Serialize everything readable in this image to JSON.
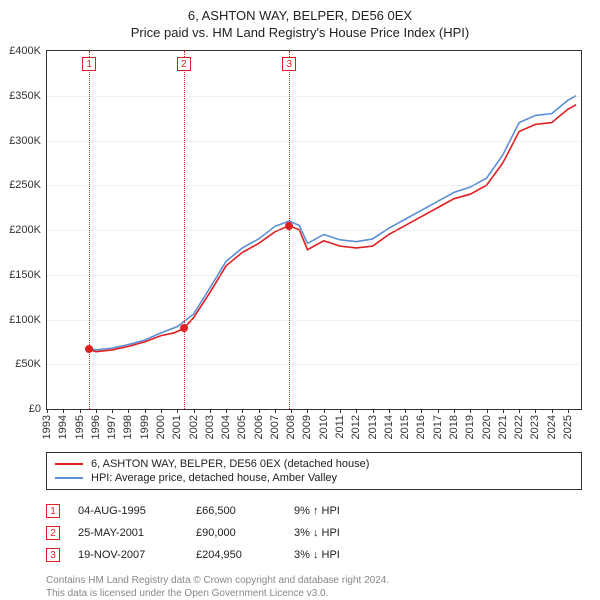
{
  "title_line1": "6, ASHTON WAY, BELPER, DE56 0EX",
  "title_line2": "Price paid vs. HM Land Registry's House Price Index (HPI)",
  "chart": {
    "type": "line",
    "background_color": "#ffffff",
    "grid_color": "#cccccc",
    "axis_color": "#333333",
    "label_fontsize": 11,
    "x_years": [
      1993,
      1994,
      1995,
      1996,
      1997,
      1998,
      1999,
      2000,
      2001,
      2002,
      2003,
      2004,
      2005,
      2006,
      2007,
      2008,
      2009,
      2010,
      2011,
      2012,
      2013,
      2014,
      2015,
      2016,
      2017,
      2018,
      2019,
      2020,
      2021,
      2022,
      2023,
      2024,
      2025
    ],
    "y_ticks": [
      0,
      50000,
      100000,
      150000,
      200000,
      250000,
      300000,
      350000,
      400000
    ],
    "y_tick_labels": [
      "£0",
      "£50K",
      "£100K",
      "£150K",
      "£200K",
      "£250K",
      "£300K",
      "£350K",
      "£400K"
    ],
    "ylim": [
      0,
      400000
    ],
    "xlim": [
      1993,
      2025.8
    ],
    "series": [
      {
        "name": "6, ASHTON WAY, BELPER, DE56 0EX (detached house)",
        "color": "#e02020",
        "line_width": 1.6,
        "data": [
          [
            1995.6,
            66500
          ],
          [
            1996,
            64000
          ],
          [
            1997,
            66000
          ],
          [
            1998,
            70000
          ],
          [
            1999,
            75000
          ],
          [
            2000,
            82000
          ],
          [
            2000.8,
            85000
          ],
          [
            2001.4,
            90000
          ],
          [
            2002,
            102000
          ],
          [
            2003,
            130000
          ],
          [
            2004,
            160000
          ],
          [
            2005,
            175000
          ],
          [
            2006,
            185000
          ],
          [
            2007,
            198000
          ],
          [
            2007.88,
            204950
          ],
          [
            2008.5,
            200000
          ],
          [
            2009,
            178000
          ],
          [
            2010,
            188000
          ],
          [
            2011,
            182000
          ],
          [
            2012,
            180000
          ],
          [
            2013,
            182000
          ],
          [
            2014,
            195000
          ],
          [
            2015,
            205000
          ],
          [
            2016,
            215000
          ],
          [
            2017,
            225000
          ],
          [
            2018,
            235000
          ],
          [
            2019,
            240000
          ],
          [
            2020,
            250000
          ],
          [
            2021,
            275000
          ],
          [
            2022,
            310000
          ],
          [
            2023,
            318000
          ],
          [
            2024,
            320000
          ],
          [
            2025,
            335000
          ],
          [
            2025.5,
            340000
          ]
        ]
      },
      {
        "name": "HPI: Average price, detached house, Amber Valley",
        "color": "#5b8fd6",
        "line_width": 1.6,
        "data": [
          [
            1995.6,
            68000
          ],
          [
            1996,
            66000
          ],
          [
            1997,
            68000
          ],
          [
            1998,
            72000
          ],
          [
            1999,
            77000
          ],
          [
            2000,
            85000
          ],
          [
            2001,
            92000
          ],
          [
            2002,
            106000
          ],
          [
            2003,
            135000
          ],
          [
            2004,
            165000
          ],
          [
            2005,
            180000
          ],
          [
            2006,
            190000
          ],
          [
            2007,
            204000
          ],
          [
            2007.88,
            210000
          ],
          [
            2008.5,
            205000
          ],
          [
            2009,
            185000
          ],
          [
            2010,
            195000
          ],
          [
            2011,
            189000
          ],
          [
            2012,
            187000
          ],
          [
            2013,
            190000
          ],
          [
            2014,
            202000
          ],
          [
            2015,
            212000
          ],
          [
            2016,
            222000
          ],
          [
            2017,
            232000
          ],
          [
            2018,
            242000
          ],
          [
            2019,
            248000
          ],
          [
            2020,
            258000
          ],
          [
            2021,
            284000
          ],
          [
            2022,
            320000
          ],
          [
            2023,
            328000
          ],
          [
            2024,
            330000
          ],
          [
            2025,
            345000
          ],
          [
            2025.5,
            350000
          ]
        ]
      }
    ],
    "markers": [
      {
        "label": "1",
        "x": 1995.59,
        "y": 66500
      },
      {
        "label": "2",
        "x": 2001.4,
        "y": 90000
      },
      {
        "label": "3",
        "x": 2007.88,
        "y": 204950
      }
    ],
    "marker_color": "#e02020"
  },
  "legend": {
    "items": [
      {
        "color": "#e02020",
        "label": "6, ASHTON WAY, BELPER, DE56 0EX (detached house)"
      },
      {
        "color": "#5b8fd6",
        "label": "HPI: Average price, detached house, Amber Valley"
      }
    ]
  },
  "events": [
    {
      "num": "1",
      "date": "04-AUG-1995",
      "price": "£66,500",
      "diff": "9% ↑ HPI"
    },
    {
      "num": "2",
      "date": "25-MAY-2001",
      "price": "£90,000",
      "diff": "3% ↓ HPI"
    },
    {
      "num": "3",
      "date": "19-NOV-2007",
      "price": "£204,950",
      "diff": "3% ↓ HPI"
    }
  ],
  "footer_line1": "Contains HM Land Registry data © Crown copyright and database right 2024.",
  "footer_line2": "This data is licensed under the Open Government Licence v3.0."
}
